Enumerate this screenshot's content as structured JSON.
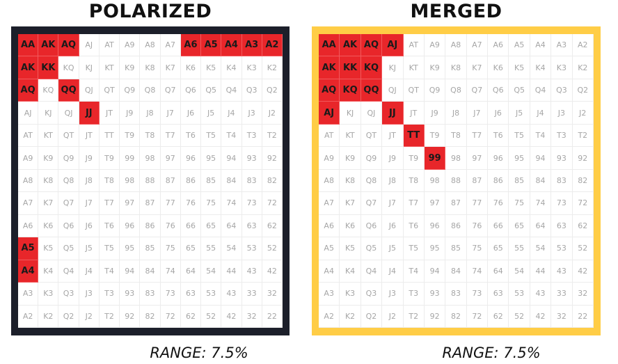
{
  "colors": {
    "highlight": "#e8262a",
    "polarized_frame": "#1c1f2a",
    "merged_frame": "#ffcd46",
    "cell_text": "#a6a6a6"
  },
  "ranks": [
    "A",
    "K",
    "Q",
    "J",
    "T",
    "9",
    "8",
    "7",
    "6",
    "5",
    "4",
    "3",
    "2"
  ],
  "panels": [
    {
      "title": "POLARIZED",
      "range_label": "RANGE: 7.5%",
      "highlighted": [
        "AA",
        "AKs",
        "AQs",
        "A6s",
        "A5s",
        "A4s",
        "A3s",
        "A2s",
        "AKo",
        "KK",
        "AQo",
        "QQ",
        "JJ",
        "A5o",
        "A4o"
      ],
      "grid": [
        [
          "AA",
          "AK",
          "AQ",
          "AJ",
          "AT",
          "A9",
          "A8",
          "A7",
          "A6",
          "A5",
          "A4",
          "A3",
          "A2"
        ],
        [
          "AK",
          "KK",
          "KQ",
          "KJ",
          "KT",
          "K9",
          "K8",
          "K7",
          "K6",
          "K5",
          "K4",
          "K3",
          "K2"
        ],
        [
          "AQ",
          "KQ",
          "QQ",
          "QJ",
          "QT",
          "Q9",
          "Q8",
          "Q7",
          "Q6",
          "Q5",
          "Q4",
          "Q3",
          "Q2"
        ],
        [
          "AJ",
          "KJ",
          "QJ",
          "JJ",
          "JT",
          "J9",
          "J8",
          "J7",
          "J6",
          "J5",
          "J4",
          "J3",
          "J2"
        ],
        [
          "AT",
          "KT",
          "QT",
          "JT",
          "TT",
          "T9",
          "T8",
          "T7",
          "T6",
          "T5",
          "T4",
          "T3",
          "T2"
        ],
        [
          "A9",
          "K9",
          "Q9",
          "J9",
          "T9",
          "99",
          "98",
          "97",
          "96",
          "95",
          "94",
          "93",
          "92"
        ],
        [
          "A8",
          "K8",
          "Q8",
          "J8",
          "T8",
          "98",
          "88",
          "87",
          "86",
          "85",
          "84",
          "83",
          "82"
        ],
        [
          "A7",
          "K7",
          "Q7",
          "J7",
          "T7",
          "97",
          "87",
          "77",
          "76",
          "75",
          "74",
          "73",
          "72"
        ],
        [
          "A6",
          "K6",
          "Q6",
          "J6",
          "T6",
          "96",
          "86",
          "76",
          "66",
          "65",
          "64",
          "63",
          "62"
        ],
        [
          "A5",
          "K5",
          "Q5",
          "J5",
          "T5",
          "95",
          "85",
          "75",
          "65",
          "55",
          "54",
          "53",
          "52"
        ],
        [
          "A4",
          "K4",
          "Q4",
          "J4",
          "T4",
          "94",
          "84",
          "74",
          "64",
          "54",
          "44",
          "43",
          "42"
        ],
        [
          "A3",
          "K3",
          "Q3",
          "J3",
          "T3",
          "93",
          "83",
          "73",
          "63",
          "53",
          "43",
          "33",
          "32"
        ],
        [
          "A2",
          "K2",
          "Q2",
          "J2",
          "T2",
          "92",
          "82",
          "72",
          "62",
          "52",
          "42",
          "32",
          "22"
        ]
      ],
      "on_cells": [
        [
          0,
          0
        ],
        [
          0,
          1
        ],
        [
          0,
          2
        ],
        [
          0,
          8
        ],
        [
          0,
          9
        ],
        [
          0,
          10
        ],
        [
          0,
          11
        ],
        [
          0,
          12
        ],
        [
          1,
          0
        ],
        [
          1,
          1
        ],
        [
          2,
          0
        ],
        [
          2,
          2
        ],
        [
          3,
          3
        ],
        [
          9,
          0
        ],
        [
          10,
          0
        ]
      ]
    },
    {
      "title": "MERGED",
      "range_label": "RANGE: 7.5%",
      "highlighted": [
        "AA",
        "AKs",
        "AQs",
        "AJs",
        "AKo",
        "KK",
        "KQs",
        "AQo",
        "KQo",
        "QQ",
        "AJo",
        "JJ",
        "TT",
        "99"
      ],
      "grid": [
        [
          "AA",
          "AK",
          "AQ",
          "AJ",
          "AT",
          "A9",
          "A8",
          "A7",
          "A6",
          "A5",
          "A4",
          "A3",
          "A2"
        ],
        [
          "AK",
          "KK",
          "KQ",
          "KJ",
          "KT",
          "K9",
          "K8",
          "K7",
          "K6",
          "K5",
          "K4",
          "K3",
          "K2"
        ],
        [
          "AQ",
          "KQ",
          "QQ",
          "QJ",
          "QT",
          "Q9",
          "Q8",
          "Q7",
          "Q6",
          "Q5",
          "Q4",
          "Q3",
          "Q2"
        ],
        [
          "AJ",
          "KJ",
          "QJ",
          "JJ",
          "JT",
          "J9",
          "J8",
          "J7",
          "J6",
          "J5",
          "J4",
          "J3",
          "J2"
        ],
        [
          "AT",
          "KT",
          "QT",
          "JT",
          "TT",
          "T9",
          "T8",
          "T7",
          "T6",
          "T5",
          "T4",
          "T3",
          "T2"
        ],
        [
          "A9",
          "K9",
          "Q9",
          "J9",
          "T9",
          "99",
          "98",
          "97",
          "96",
          "95",
          "94",
          "93",
          "92"
        ],
        [
          "A8",
          "K8",
          "Q8",
          "J8",
          "T8",
          "98",
          "88",
          "87",
          "86",
          "85",
          "84",
          "83",
          "82"
        ],
        [
          "A7",
          "K7",
          "Q7",
          "J7",
          "T7",
          "97",
          "87",
          "77",
          "76",
          "75",
          "74",
          "73",
          "72"
        ],
        [
          "A6",
          "K6",
          "Q6",
          "J6",
          "T6",
          "96",
          "86",
          "76",
          "66",
          "65",
          "64",
          "63",
          "62"
        ],
        [
          "A5",
          "K5",
          "Q5",
          "J5",
          "T5",
          "95",
          "85",
          "75",
          "65",
          "55",
          "54",
          "53",
          "52"
        ],
        [
          "A4",
          "K4",
          "Q4",
          "J4",
          "T4",
          "94",
          "84",
          "74",
          "64",
          "54",
          "44",
          "43",
          "42"
        ],
        [
          "A3",
          "K3",
          "Q3",
          "J3",
          "T3",
          "93",
          "83",
          "73",
          "63",
          "53",
          "43",
          "33",
          "32"
        ],
        [
          "A2",
          "K2",
          "Q2",
          "J2",
          "T2",
          "92",
          "82",
          "72",
          "62",
          "52",
          "42",
          "32",
          "22"
        ]
      ],
      "on_cells": [
        [
          0,
          0
        ],
        [
          0,
          1
        ],
        [
          0,
          2
        ],
        [
          0,
          3
        ],
        [
          1,
          0
        ],
        [
          1,
          1
        ],
        [
          1,
          2
        ],
        [
          2,
          0
        ],
        [
          2,
          1
        ],
        [
          2,
          2
        ],
        [
          3,
          0
        ],
        [
          3,
          3
        ],
        [
          4,
          4
        ],
        [
          5,
          5
        ]
      ]
    }
  ]
}
